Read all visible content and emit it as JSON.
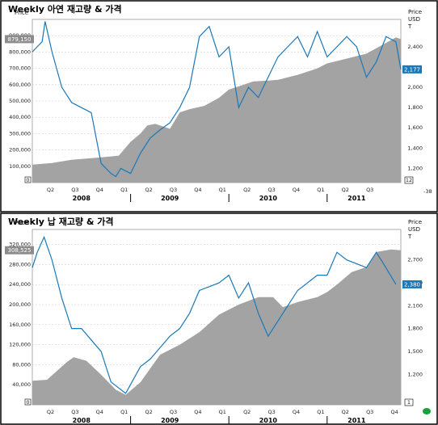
{
  "chart_data": [
    {
      "type": "area",
      "title": "Weekly 아연 재고량 & 가격",
      "left_axis_label": "Price",
      "right_axis_label": [
        "Price",
        "USD",
        "T"
      ],
      "left_ticks": [
        "100,000",
        "200,000",
        "300,000",
        "400,000",
        "500,000",
        "600,000",
        "700,000",
        "800,000",
        "900,000"
      ],
      "left_tick_values": [
        100000,
        200000,
        300000,
        400000,
        500000,
        600000,
        700000,
        800000,
        900000
      ],
      "left_range": [
        0,
        1000000
      ],
      "right_ticks": [
        "1,200",
        "1,400",
        "1,600",
        "1,800",
        "2,000",
        "2,400"
      ],
      "right_tick_values": [
        1200,
        1400,
        1600,
        1800,
        2000,
        2400
      ],
      "right_range": [
        1060,
        2670
      ],
      "quarter_labels": [
        "Q2",
        "Q3",
        "Q4",
        "Q1",
        "Q2",
        "Q3",
        "Q4",
        "Q1",
        "Q2",
        "Q3",
        "Q4",
        "Q1",
        "Q2",
        "Q3"
      ],
      "year_labels": [
        "2008",
        "2009",
        "2010",
        "2011"
      ],
      "left_last_tag": "879,150",
      "right_last_tag": "2,177",
      "left_zero_label": "0",
      "right_bottom_label": "12",
      "corner_note": "-38",
      "series": [
        {
          "kind": "area",
          "color": "#a3a3a3",
          "axis": "left",
          "x": [
            2008.0,
            2008.2,
            2008.4,
            2008.6,
            2008.8,
            2008.88,
            2009.0,
            2009.1,
            2009.17,
            2009.25,
            2009.4,
            2009.5,
            2009.6,
            2009.75,
            2009.9,
            2010.0,
            2010.1,
            2010.25,
            2010.4,
            2010.5,
            2010.7,
            2010.9,
            2011.0,
            2011.2,
            2011.4,
            2011.55,
            2011.7,
            2011.75
          ],
          "values": [
            110000,
            120000,
            140000,
            150000,
            160000,
            165000,
            250000,
            300000,
            350000,
            360000,
            330000,
            430000,
            450000,
            470000,
            520000,
            570000,
            590000,
            620000,
            625000,
            630000,
            660000,
            700000,
            730000,
            760000,
            790000,
            840000,
            890000,
            879150
          ]
        },
        {
          "kind": "line",
          "color": "#1a78b8",
          "axis": "right",
          "x": [
            2008.0,
            2008.05,
            2008.1,
            2008.13,
            2008.2,
            2008.3,
            2008.4,
            2008.5,
            2008.6,
            2008.7,
            2008.8,
            2008.85,
            2008.9,
            2009.0,
            2009.1,
            2009.2,
            2009.3,
            2009.4,
            2009.5,
            2009.6,
            2009.7,
            2009.8,
            2009.9,
            2010.0,
            2010.1,
            2010.2,
            2010.3,
            2010.4,
            2010.5,
            2010.6,
            2010.7,
            2010.8,
            2010.9,
            2011.0,
            2011.1,
            2011.2,
            2011.3,
            2011.4,
            2011.5,
            2011.6,
            2011.7,
            2011.75
          ],
          "values": [
            2350,
            2400,
            2450,
            2650,
            2350,
            2000,
            1850,
            1800,
            1750,
            1250,
            1150,
            1120,
            1200,
            1150,
            1350,
            1500,
            1580,
            1650,
            1800,
            2000,
            2500,
            2600,
            2300,
            2400,
            1800,
            2000,
            1900,
            2100,
            2300,
            2400,
            2500,
            2300,
            2550,
            2300,
            2400,
            2500,
            2400,
            2100,
            2250,
            2500,
            2450,
            2177
          ]
        }
      ]
    },
    {
      "type": "area",
      "title": "Weekly 납 재고량 & 가격",
      "left_axis_label": "Price",
      "right_axis_label": [
        "Price",
        "USD",
        "T"
      ],
      "left_ticks": [
        "40,000",
        "80,000",
        "120,000",
        "160,000",
        "200,000",
        "240,000",
        "280,000",
        "320,000"
      ],
      "left_tick_values": [
        40000,
        80000,
        120000,
        160000,
        200000,
        240000,
        280000,
        320000
      ],
      "left_range": [
        0,
        350000
      ],
      "right_ticks": [
        "1,200",
        "1,500",
        "1,800",
        "2,100",
        "2,400",
        "2,700"
      ],
      "right_tick_values": [
        1200,
        1500,
        1800,
        2100,
        2400,
        2700
      ],
      "right_range": [
        800,
        3100
      ],
      "quarter_labels": [
        "Q2",
        "Q3",
        "Q4",
        "Q1",
        "Q2",
        "Q3",
        "Q4",
        "Q1",
        "Q2",
        "Q3",
        "Q4",
        "Q1",
        "Q2",
        "Q3",
        "Q4"
      ],
      "year_labels": [
        "2008",
        "2009",
        "2010",
        "2011"
      ],
      "left_last_tag": "308,525",
      "right_last_tag": "2,380",
      "left_zero_label": "0",
      "right_bottom_label": "1",
      "series": [
        {
          "kind": "area",
          "color": "#a3a3a3",
          "axis": "left",
          "x": [
            2008.0,
            2008.15,
            2008.35,
            2008.42,
            2008.55,
            2008.7,
            2008.85,
            2008.95,
            2009.1,
            2009.3,
            2009.5,
            2009.7,
            2009.9,
            2010.1,
            2010.3,
            2010.45,
            2010.55,
            2010.7,
            2010.9,
            2011.0,
            2011.1,
            2011.25,
            2011.4,
            2011.5,
            2011.65,
            2011.75
          ],
          "values": [
            48000,
            50000,
            85000,
            95000,
            88000,
            60000,
            30000,
            20000,
            45000,
            100000,
            120000,
            145000,
            180000,
            200000,
            215000,
            215000,
            195000,
            205000,
            215000,
            225000,
            240000,
            265000,
            275000,
            305000,
            310000,
            308525
          ]
        },
        {
          "kind": "line",
          "color": "#1a78b8",
          "axis": "right",
          "x": [
            2008.0,
            2008.05,
            2008.12,
            2008.2,
            2008.3,
            2008.4,
            2008.5,
            2008.6,
            2008.7,
            2008.8,
            2008.95,
            2009.1,
            2009.2,
            2009.3,
            2009.4,
            2009.5,
            2009.6,
            2009.7,
            2009.8,
            2009.9,
            2010.0,
            2010.1,
            2010.2,
            2010.3,
            2010.4,
            2010.5,
            2010.6,
            2010.7,
            2010.8,
            2010.9,
            2011.0,
            2011.1,
            2011.2,
            2011.3,
            2011.4,
            2011.5,
            2011.55,
            2011.7
          ],
          "values": [
            2600,
            2800,
            3000,
            2700,
            2200,
            1800,
            1800,
            1650,
            1500,
            1100,
            950,
            1300,
            1400,
            1550,
            1700,
            1800,
            2000,
            2300,
            2350,
            2400,
            2500,
            2200,
            2400,
            2000,
            1700,
            1900,
            2100,
            2300,
            2400,
            2500,
            2500,
            2800,
            2700,
            2650,
            2600,
            2800,
            2700,
            2380
          ]
        }
      ]
    }
  ]
}
